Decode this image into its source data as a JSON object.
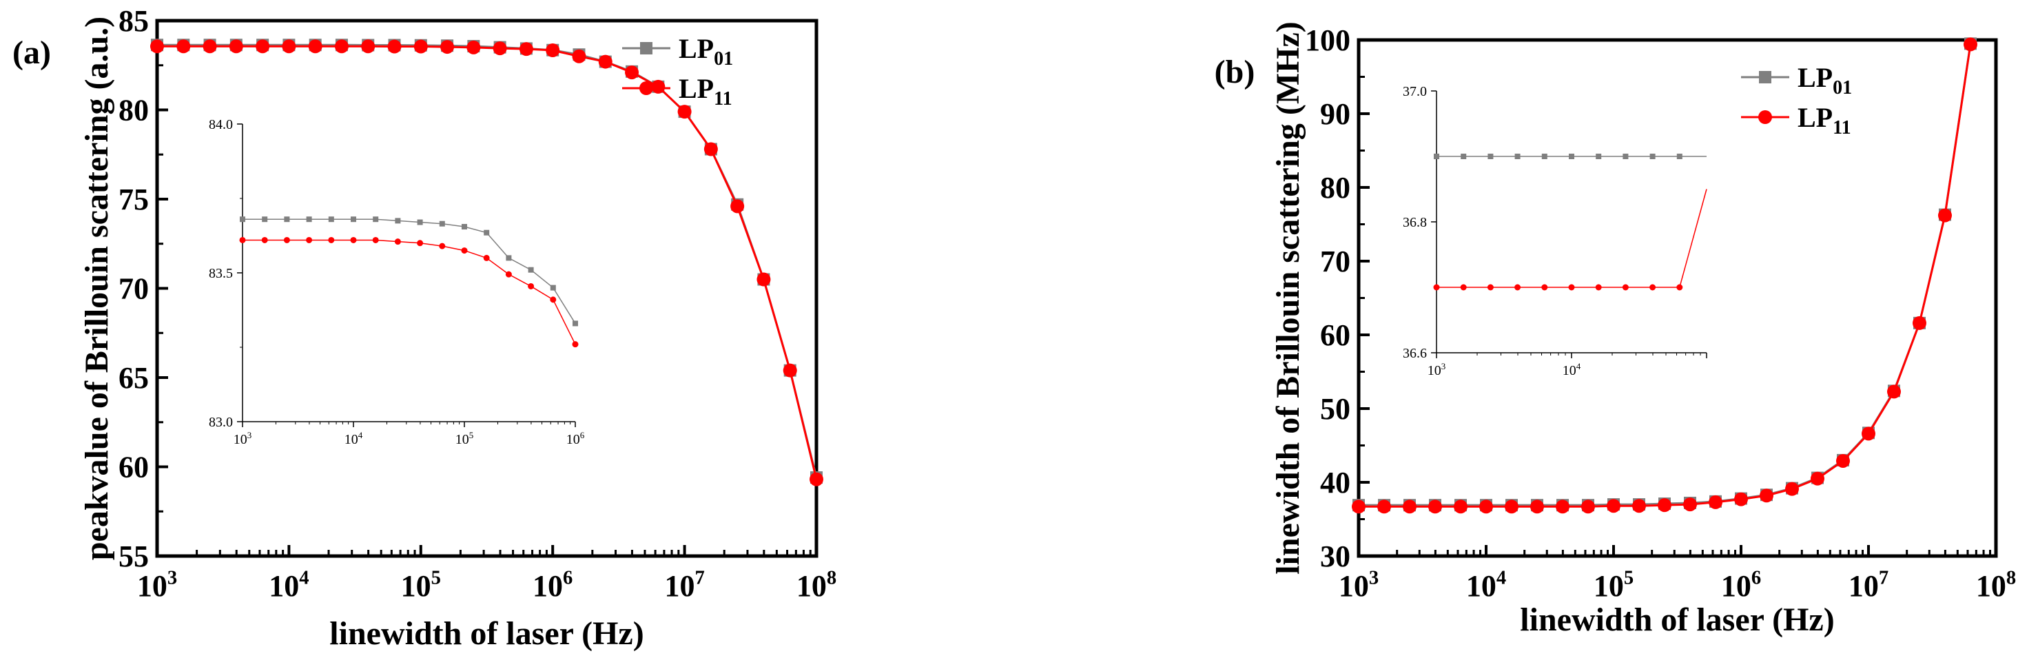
{
  "chart_data": [
    {
      "panel_label": "(a)",
      "type": "line",
      "xscale": "log",
      "xlabel": "linewidth of laser (Hz)",
      "ylabel": "peakvalue of Brillouin scattering (a.u.)",
      "xlim": [
        1000,
        100000000
      ],
      "ylim": [
        55,
        85
      ],
      "xtick_labels": [
        {
          "base": "10",
          "exp": "3"
        },
        {
          "base": "10",
          "exp": "4"
        },
        {
          "base": "10",
          "exp": "5"
        },
        {
          "base": "10",
          "exp": "6"
        },
        {
          "base": "10",
          "exp": "7"
        },
        {
          "base": "10",
          "exp": "8"
        }
      ],
      "ytick_labels": [
        "55",
        "60",
        "65",
        "70",
        "75",
        "80",
        "85"
      ],
      "legend": {
        "position": "top-right",
        "entries": [
          {
            "name": "LP",
            "sub": "01"
          },
          {
            "name": "LP",
            "sub": "11"
          }
        ]
      },
      "x": [
        1000,
        1585,
        2512,
        3981,
        6310,
        10000,
        15849,
        25119,
        39811,
        63096,
        100000,
        158489,
        251189,
        398107,
        630957,
        1000000,
        1584893,
        2511886,
        3981072,
        6309573,
        10000000,
        15848932,
        25118864,
        39810717,
        63095734,
        100000000
      ],
      "series": [
        {
          "name": "LP01",
          "color": "#7f7f7f",
          "marker": "square",
          "values": [
            83.64,
            83.64,
            83.64,
            83.64,
            83.64,
            83.64,
            83.64,
            83.64,
            83.63,
            83.63,
            83.62,
            83.6,
            83.57,
            83.51,
            83.44,
            83.35,
            83.1,
            82.7,
            82.15,
            81.3,
            79.9,
            77.8,
            74.7,
            70.5,
            65.4,
            59.4
          ]
        },
        {
          "name": "LP11",
          "color": "#ff0000",
          "marker": "circle",
          "values": [
            83.56,
            83.56,
            83.56,
            83.56,
            83.56,
            83.56,
            83.56,
            83.56,
            83.56,
            83.55,
            83.55,
            83.53,
            83.5,
            83.45,
            83.41,
            83.34,
            83.0,
            82.7,
            82.1,
            81.3,
            79.9,
            77.8,
            74.6,
            70.5,
            65.4,
            59.3
          ]
        }
      ],
      "inset": {
        "xscale": "log",
        "xlim": [
          1000,
          1000000
        ],
        "ylim": [
          83.0,
          84.0
        ],
        "xtick_labels": [
          {
            "base": "10",
            "exp": "3"
          },
          {
            "base": "10",
            "exp": "4"
          },
          {
            "base": "10",
            "exp": "5"
          },
          {
            "base": "10",
            "exp": "6"
          }
        ],
        "ytick_labels": [
          "83.0",
          "83.5",
          "84.0"
        ],
        "x": [
          1000,
          1585,
          2512,
          3981,
          6310,
          10000,
          15849,
          25119,
          39811,
          63096,
          100000,
          158489,
          251189,
          398107,
          630957,
          1000000
        ],
        "series": [
          {
            "name": "LP01",
            "color": "#7f7f7f",
            "marker": "square",
            "values": [
              83.68,
              83.68,
              83.68,
              83.68,
              83.68,
              83.68,
              83.68,
              83.675,
              83.67,
              83.665,
              83.655,
              83.635,
              83.55,
              83.51,
              83.45,
              83.33
            ]
          },
          {
            "name": "LP11",
            "color": "#ff0000",
            "marker": "circle",
            "values": [
              83.61,
              83.61,
              83.61,
              83.61,
              83.61,
              83.61,
              83.61,
              83.605,
              83.6,
              83.59,
              83.575,
              83.55,
              83.495,
              83.455,
              83.41,
              83.26
            ]
          }
        ]
      }
    },
    {
      "panel_label": "(b)",
      "type": "line",
      "xscale": "log",
      "xlabel": "linewidth of laser (Hz)",
      "ylabel": "linewidth of Brillouin scattering (MHz)",
      "xlim": [
        1000,
        100000000
      ],
      "ylim": [
        30,
        100
      ],
      "xtick_labels": [
        {
          "base": "10",
          "exp": "3"
        },
        {
          "base": "10",
          "exp": "4"
        },
        {
          "base": "10",
          "exp": "5"
        },
        {
          "base": "10",
          "exp": "6"
        },
        {
          "base": "10",
          "exp": "7"
        },
        {
          "base": "10",
          "exp": "8"
        }
      ],
      "ytick_labels": [
        "30",
        "40",
        "50",
        "60",
        "70",
        "80",
        "90",
        "100"
      ],
      "legend": {
        "position": "top-right",
        "entries": [
          {
            "name": "LP",
            "sub": "01"
          },
          {
            "name": "LP",
            "sub": "11"
          }
        ]
      },
      "x": [
        1000,
        1585,
        2512,
        3981,
        6310,
        10000,
        15849,
        25119,
        39811,
        63096,
        100000,
        158489,
        251189,
        398107,
        630957,
        1000000,
        1584893,
        2511886,
        3981072,
        6309573,
        10000000,
        15848932,
        25118864,
        39810717,
        63095734
      ],
      "series": [
        {
          "name": "LP01",
          "color": "#7f7f7f",
          "marker": "square",
          "values": [
            36.9,
            36.9,
            36.9,
            36.9,
            36.9,
            36.9,
            36.9,
            36.9,
            36.9,
            36.9,
            37.0,
            37.0,
            37.1,
            37.2,
            37.4,
            37.8,
            38.3,
            39.2,
            40.6,
            43.0,
            46.7,
            52.4,
            61.6,
            76.3,
            99.5
          ]
        },
        {
          "name": "LP11",
          "color": "#ff0000",
          "marker": "circle",
          "values": [
            36.7,
            36.7,
            36.7,
            36.7,
            36.7,
            36.7,
            36.7,
            36.7,
            36.7,
            36.7,
            36.8,
            36.8,
            36.9,
            37.0,
            37.3,
            37.7,
            38.2,
            39.1,
            40.5,
            42.9,
            46.6,
            52.3,
            61.6,
            76.2,
            99.4
          ]
        }
      ],
      "inset": {
        "xscale": "log",
        "xlim": [
          1000,
          100000
        ],
        "ylim": [
          36.6,
          37.0
        ],
        "xtick_labels": [
          {
            "base": "10",
            "exp": "3"
          },
          {
            "base": "10",
            "exp": "4"
          }
        ],
        "ytick_labels": [
          "36.6",
          "36.8",
          "37.0"
        ],
        "x": [
          1000,
          1585,
          2512,
          3981,
          6310,
          10000,
          15849,
          25119,
          39811,
          63096,
          100000
        ],
        "series": [
          {
            "name": "LP01",
            "color": "#7f7f7f",
            "marker": "square",
            "values": [
              36.9,
              36.9,
              36.9,
              36.9,
              36.9,
              36.9,
              36.9,
              36.9,
              36.9,
              36.9,
              36.9
            ]
          },
          {
            "name": "LP11",
            "color": "#ff0000",
            "marker": "circle",
            "values": [
              36.7,
              36.7,
              36.7,
              36.7,
              36.7,
              36.7,
              36.7,
              36.7,
              36.7,
              36.7,
              36.85
            ]
          }
        ]
      }
    }
  ]
}
